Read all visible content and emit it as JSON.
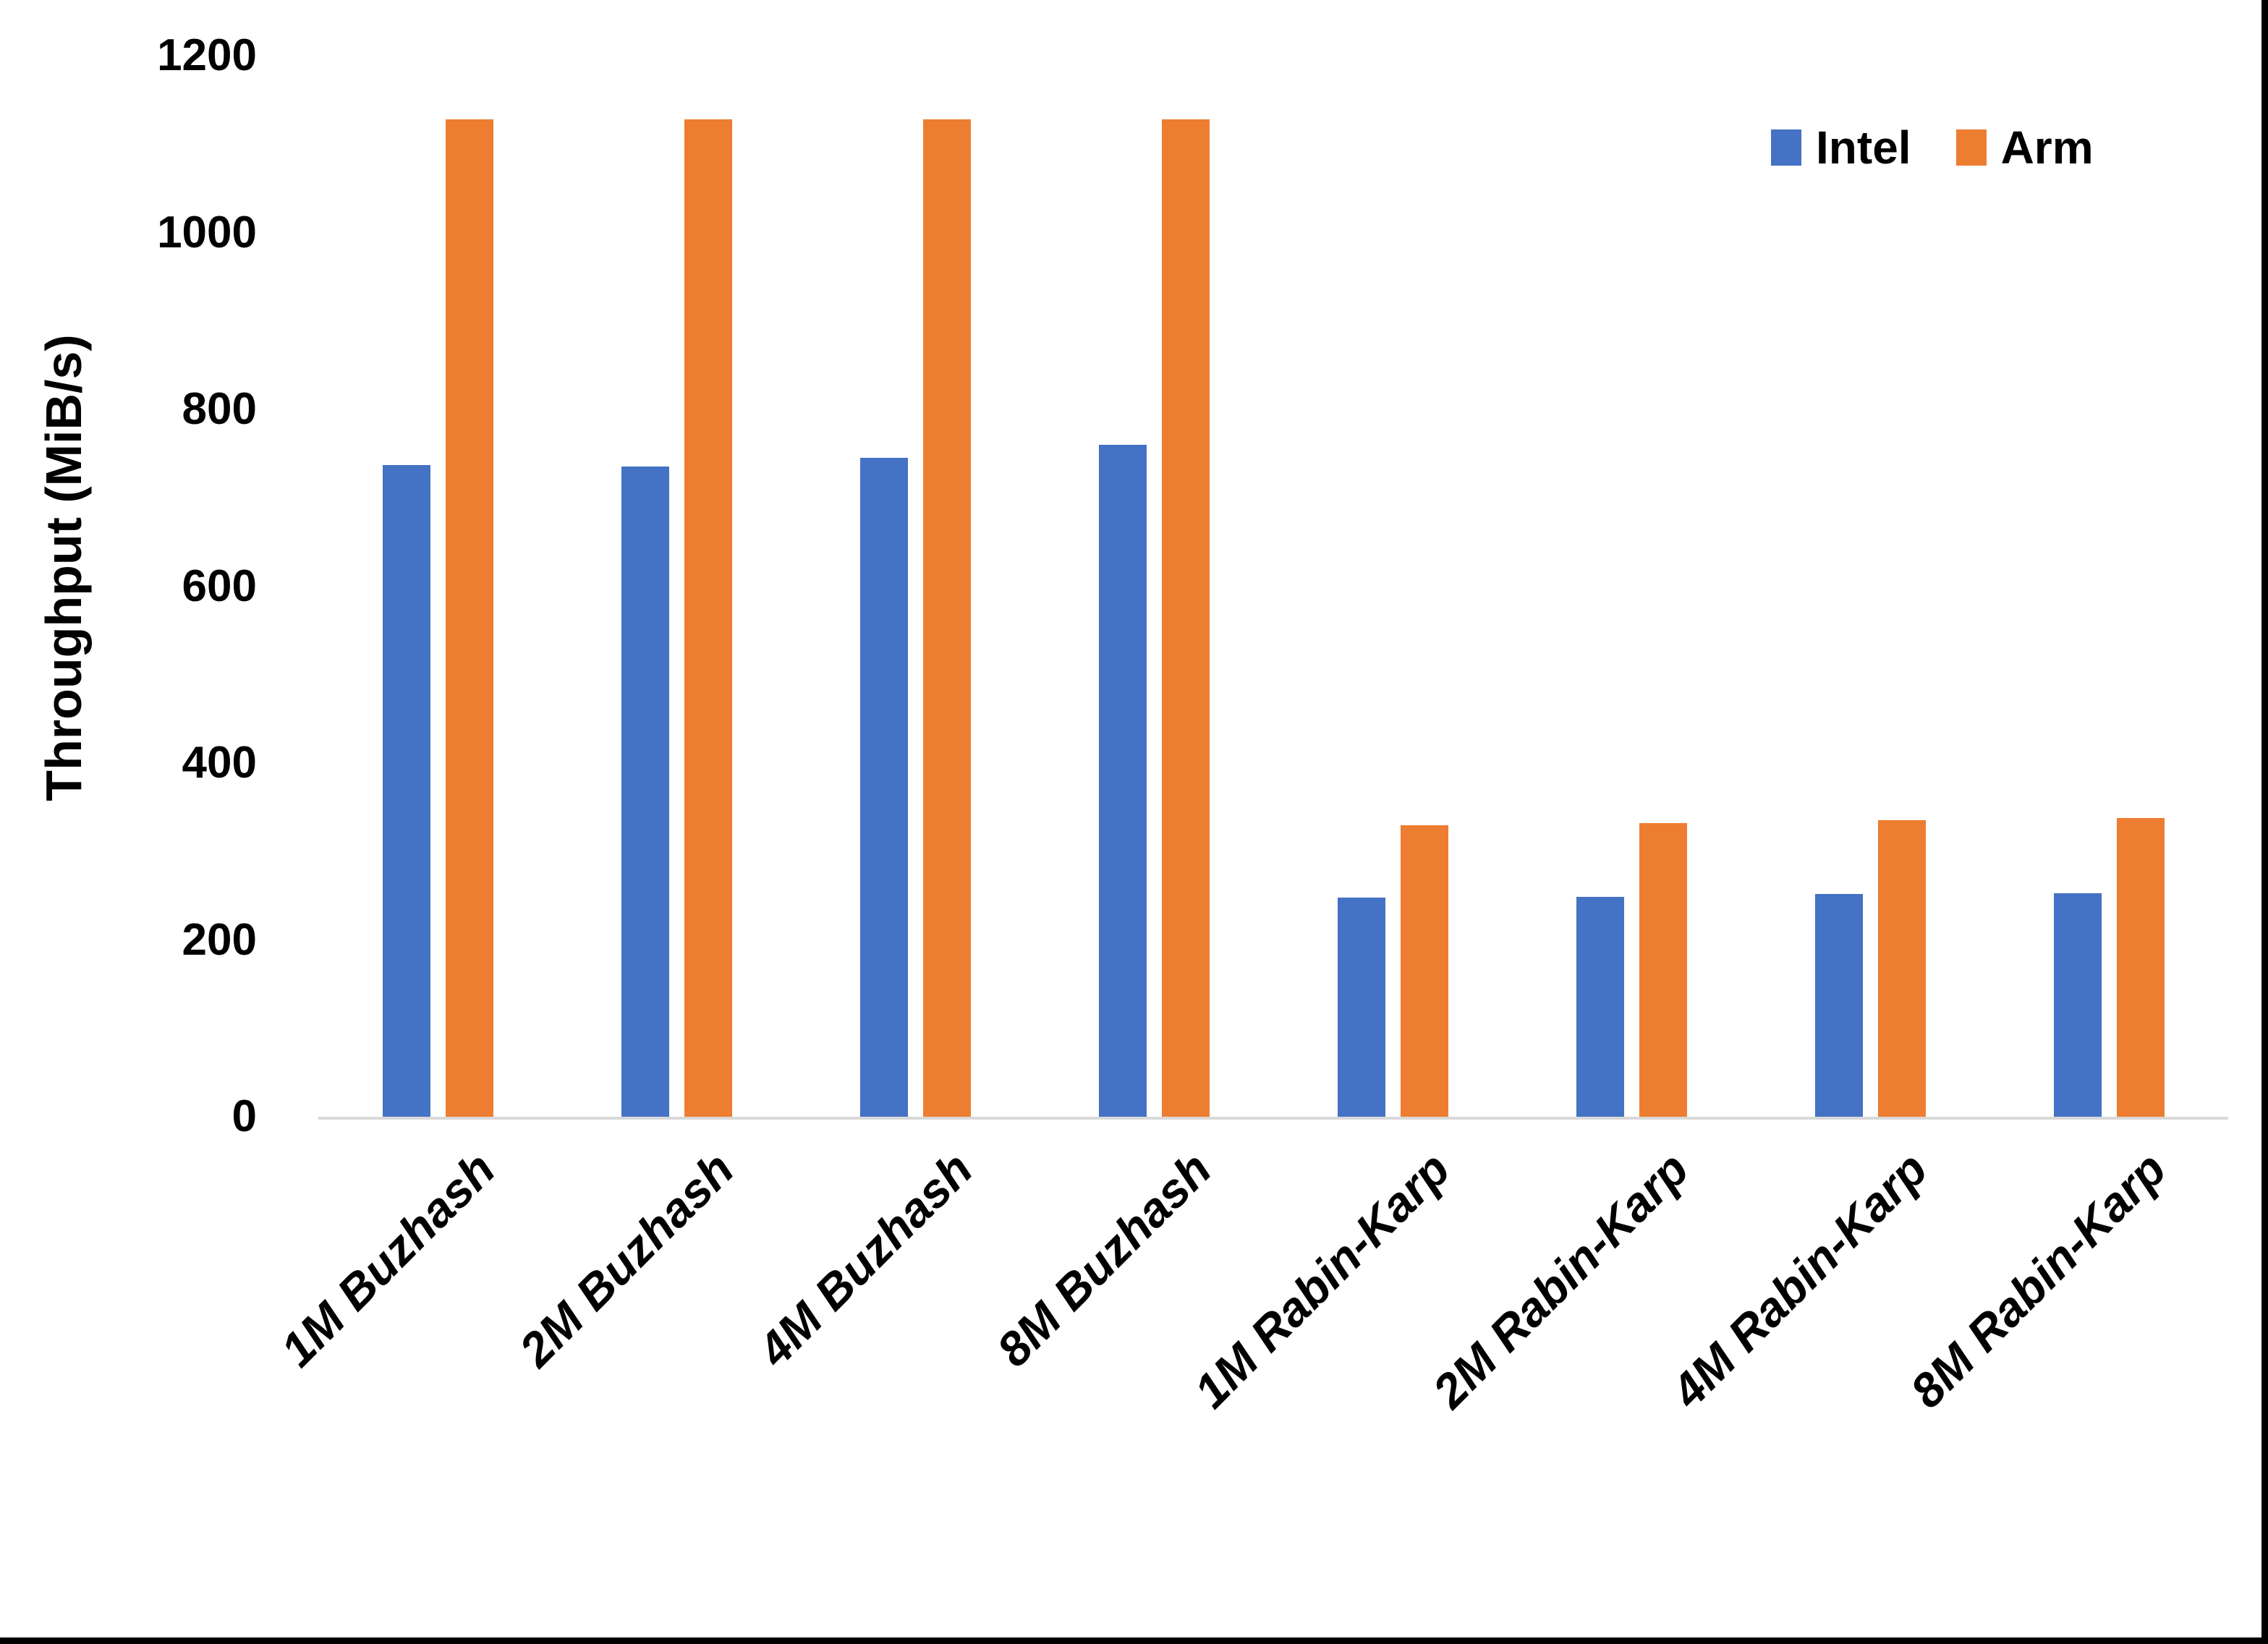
{
  "chart_data": {
    "type": "bar",
    "title": "",
    "xlabel": "",
    "ylabel": "Throughput (MiB/s)",
    "ylim": [
      0,
      1200
    ],
    "yticks": [
      0,
      200,
      400,
      600,
      800,
      1000,
      1200
    ],
    "grid": false,
    "legend_position": "top-right",
    "categories": [
      "1M Buzhash",
      "2M Buzhash",
      "4M Buzhash",
      "8M Buzhash",
      "1M Rabin-Karp",
      "2M Rabin-Karp",
      "4M Rabin-Karp",
      "8M Rabin-Karp"
    ],
    "series": [
      {
        "name": "Intel",
        "color": "#4472C4",
        "values": [
          737,
          735,
          745,
          760,
          248,
          249,
          252,
          253
        ]
      },
      {
        "name": "Arm",
        "color": "#ED7D31",
        "values": [
          1128,
          1128,
          1128,
          1128,
          330,
          332,
          335,
          338
        ]
      }
    ]
  },
  "colors": {
    "axis_line": "#D9D9D9",
    "text": "#000000",
    "background": "#FFFFFF",
    "frame_edge": "#000000"
  }
}
